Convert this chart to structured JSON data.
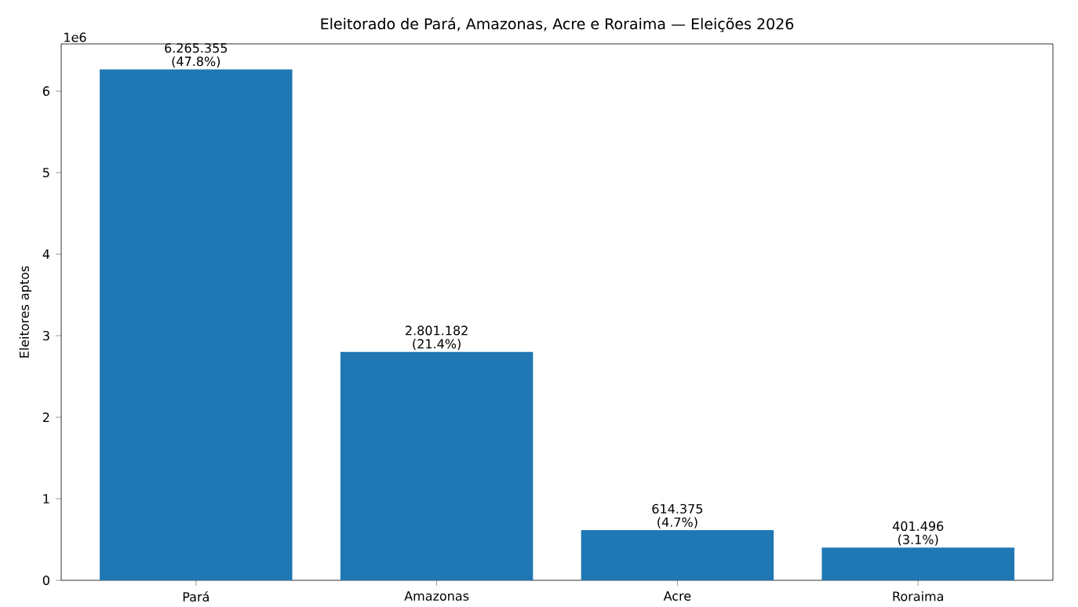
{
  "chart_data": {
    "type": "bar",
    "title": "Eleitorado de Pará, Amazonas, Acre e Roraima — Eleições 2026",
    "ylabel": "Eleitores aptos",
    "categories": [
      "Pará",
      "Amazonas",
      "Acre",
      "Roraima"
    ],
    "values": [
      6.265355,
      2.801182,
      0.614375,
      0.401496
    ],
    "color": "#1f77b4",
    "ylim": [
      0,
      6.5786
    ],
    "yticks": [
      0,
      1,
      2,
      3,
      4,
      5,
      6
    ],
    "annotations": [
      "1e6",
      {
        "text": "6.265.355 (47.8%)",
        "x": "Pará",
        "y": 6.265355
      },
      {
        "text": "2.801.182 (21.4%)",
        "x": "Amazonas",
        "y": 2.801182
      },
      {
        "text": "614.375 (4.7%)",
        "x": "Acre",
        "y": 0.614375
      },
      {
        "text": "401.496 (3.1%)",
        "x": "Roraima",
        "y": 0.401496
      }
    ],
    "grid": false
  }
}
